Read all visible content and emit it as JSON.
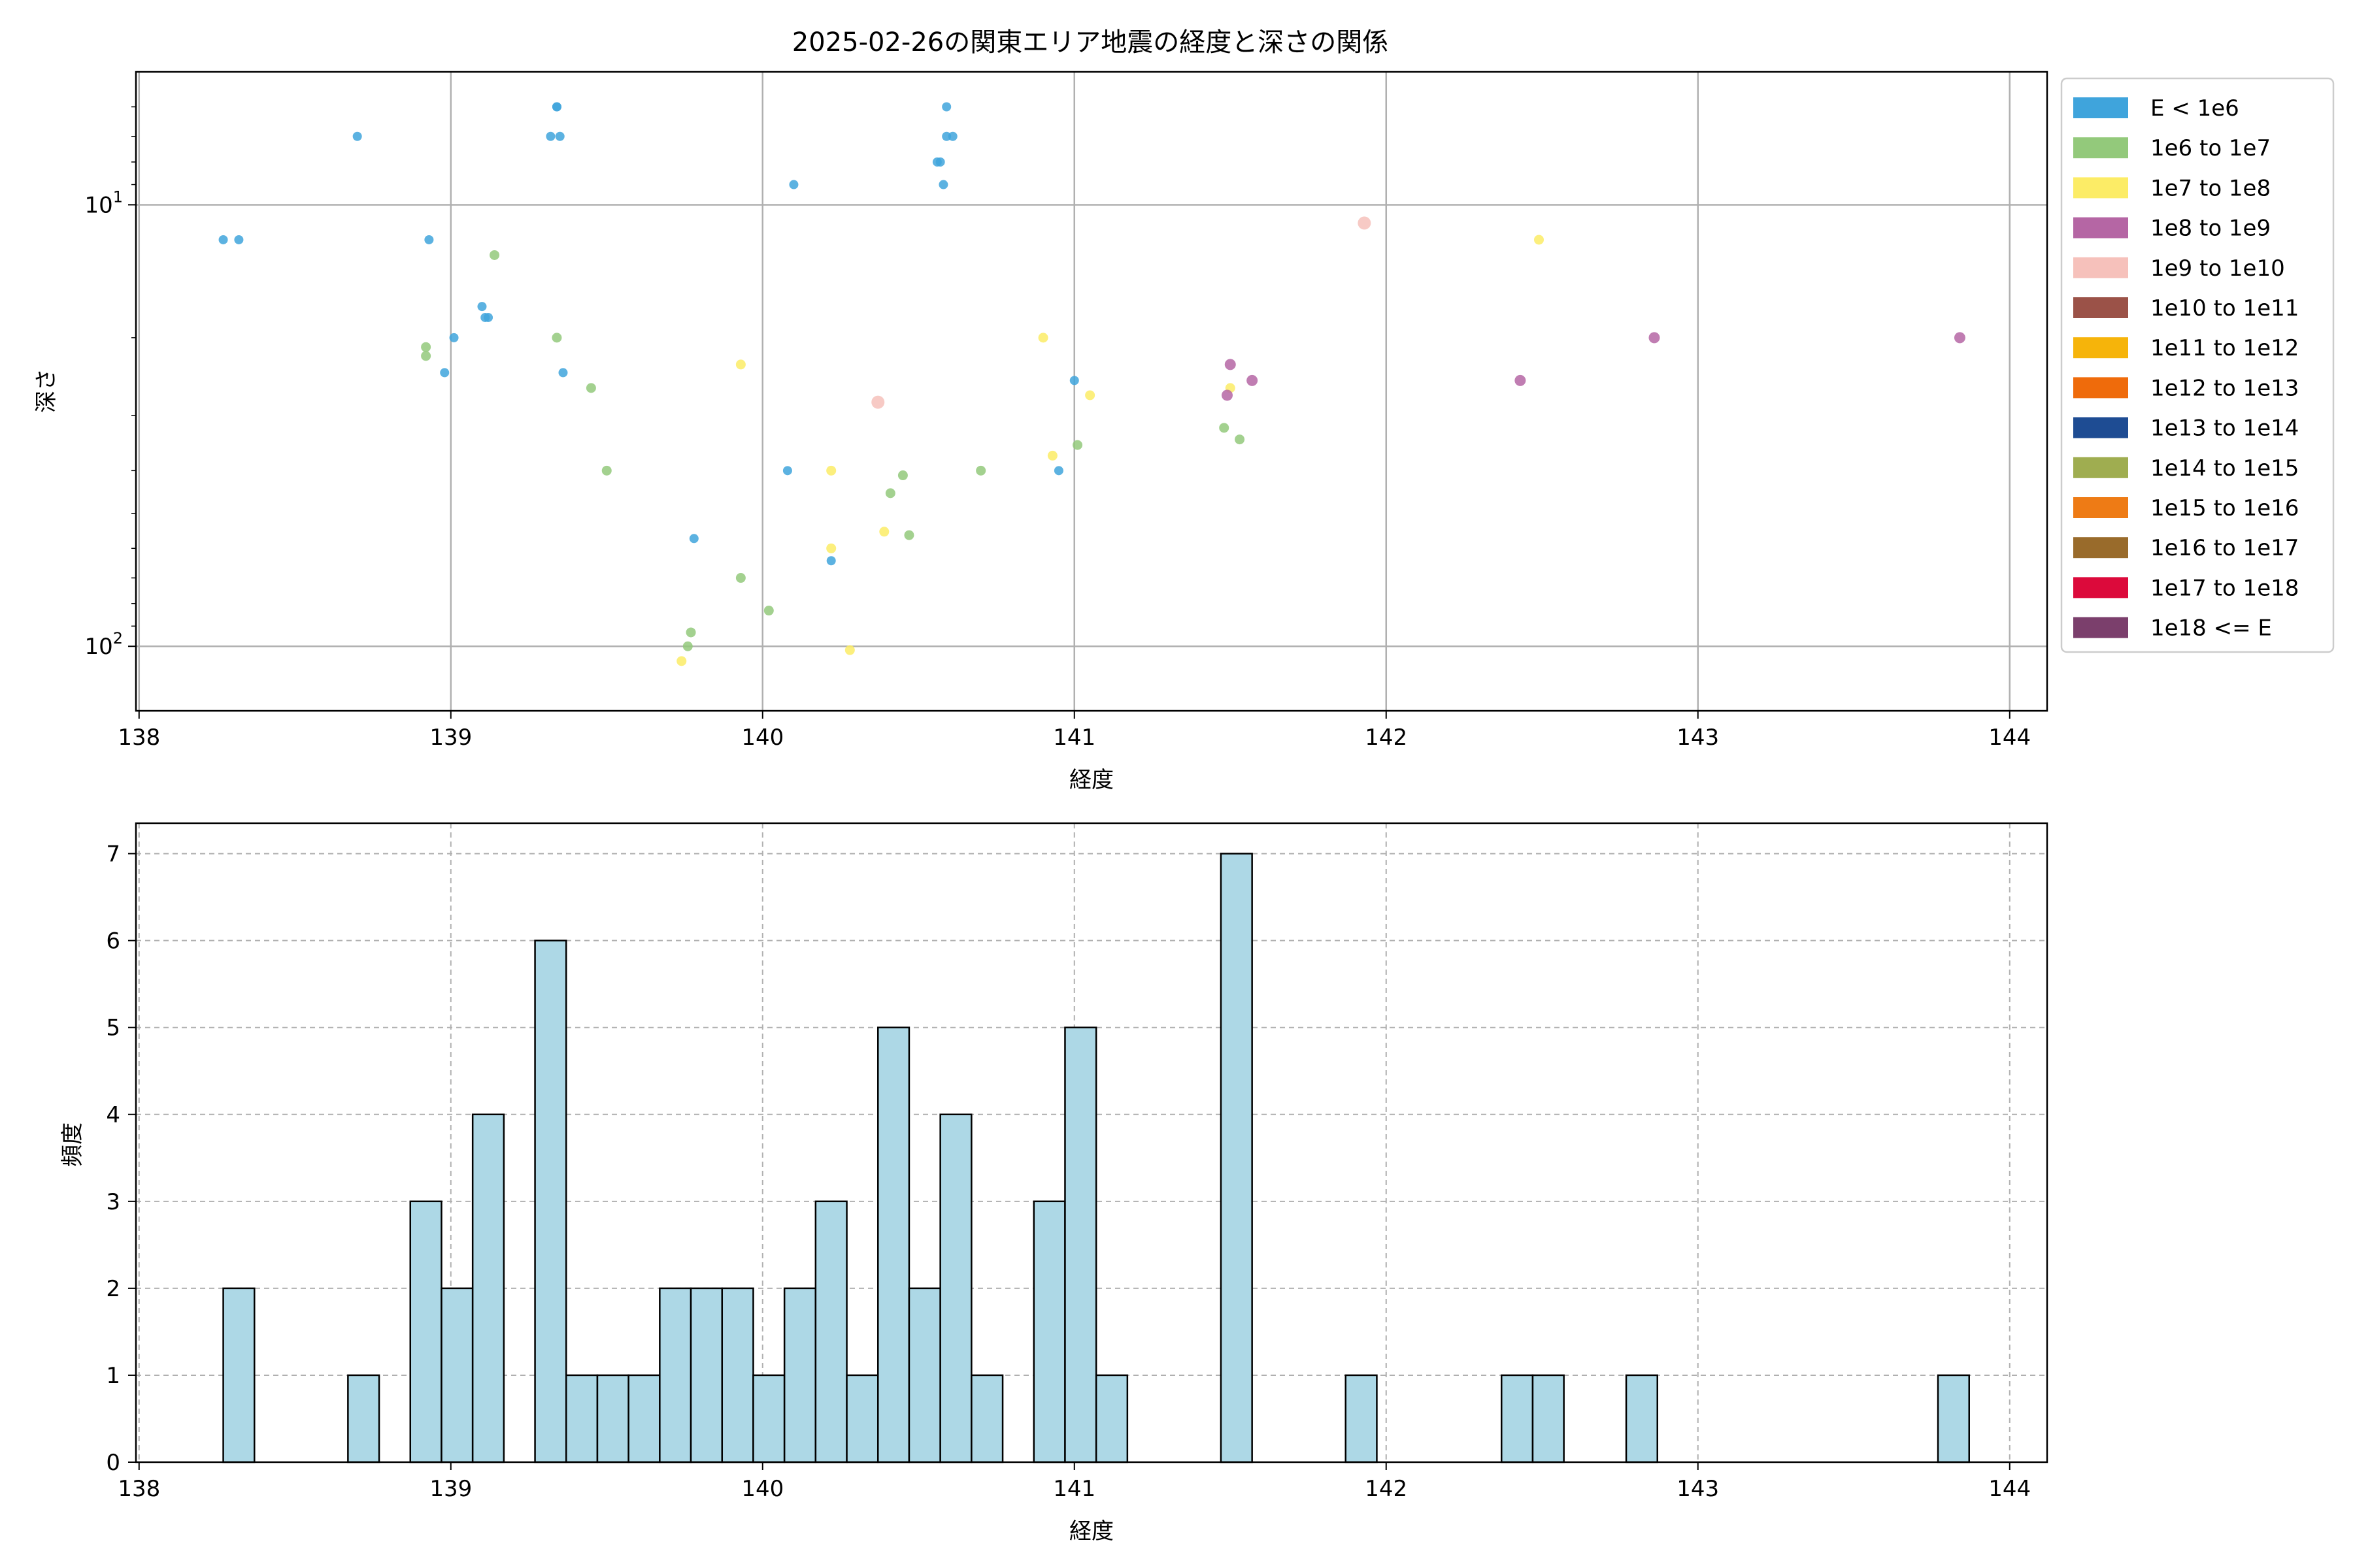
{
  "chart_data": [
    {
      "type": "scatter",
      "title": "2025-02-26の関東エリア地震の経度と深さの関係",
      "xlabel": "経度",
      "ylabel": "深さ",
      "xlim": [
        137.99,
        144.12
      ],
      "ylim": [
        140,
        5
      ],
      "yscale": "log",
      "y_inverted": true,
      "grid": true,
      "xticks": [
        138,
        139,
        140,
        141,
        142,
        143,
        144
      ],
      "yticks": [
        {
          "value": 10,
          "base": "10",
          "exp": "1"
        },
        {
          "value": 100,
          "base": "10",
          "exp": "2"
        }
      ],
      "legend": {
        "placement": "outside-right",
        "entries": [
          {
            "label": "E < 1e6",
            "color": "#3fa4dc"
          },
          {
            "label": "1e6 to 1e7",
            "color": "#93c97b"
          },
          {
            "label": "1e7 to 1e8",
            "color": "#fcec66"
          },
          {
            "label": "1e8 to 1e9",
            "color": "#b566a4"
          },
          {
            "label": "1e9 to 1e10",
            "color": "#f6c1bb"
          },
          {
            "label": "1e10 to 1e11",
            "color": "#9b5248"
          },
          {
            "label": "1e11 to 1e12",
            "color": "#f6b40a"
          },
          {
            "label": "1e12 to 1e13",
            "color": "#ef6b0b"
          },
          {
            "label": "1e13 to 1e14",
            "color": "#1e4c93"
          },
          {
            "label": "1e14 to 1e15",
            "color": "#9fad50"
          },
          {
            "label": "1e15 to 1e16",
            "color": "#ee7b15"
          },
          {
            "label": "1e16 to 1e17",
            "color": "#996b2b"
          },
          {
            "label": "1e17 to 1e18",
            "color": "#dc0a3b"
          },
          {
            "label": "1e18 <= E",
            "color": "#7b3f6c"
          }
        ]
      },
      "series": [
        {
          "legend_index": 0,
          "points": [
            [
              138.27,
              12
            ],
            [
              138.32,
              12
            ],
            [
              138.7,
              7
            ],
            [
              138.93,
              12
            ],
            [
              138.98,
              24
            ],
            [
              139.01,
              20
            ],
            [
              139.1,
              17
            ],
            [
              139.11,
              18
            ],
            [
              139.12,
              18
            ],
            [
              139.32,
              7
            ],
            [
              139.34,
              6
            ],
            [
              139.34,
              6
            ],
            [
              139.35,
              7
            ],
            [
              139.36,
              24
            ],
            [
              139.78,
              57
            ],
            [
              140.08,
              40
            ],
            [
              140.1,
              9
            ],
            [
              140.22,
              64
            ],
            [
              140.56,
              8
            ],
            [
              140.57,
              8
            ],
            [
              140.58,
              9
            ],
            [
              140.59,
              6
            ],
            [
              140.59,
              7
            ],
            [
              140.61,
              7
            ],
            [
              140.95,
              40
            ],
            [
              141.0,
              25
            ]
          ]
        },
        {
          "legend_index": 1,
          "points": [
            [
              138.92,
              21
            ],
            [
              138.92,
              22
            ],
            [
              139.14,
              13
            ],
            [
              139.34,
              20
            ],
            [
              139.45,
              26
            ],
            [
              139.5,
              40
            ],
            [
              139.76,
              100
            ],
            [
              139.77,
              93
            ],
            [
              139.93,
              70
            ],
            [
              140.02,
              83
            ],
            [
              140.41,
              45
            ],
            [
              140.45,
              41
            ],
            [
              140.47,
              56
            ],
            [
              140.7,
              40
            ],
            [
              141.01,
              35
            ],
            [
              141.48,
              32
            ],
            [
              141.53,
              34
            ]
          ]
        },
        {
          "legend_index": 2,
          "points": [
            [
              139.74,
              108
            ],
            [
              139.93,
              23
            ],
            [
              140.22,
              40
            ],
            [
              140.22,
              60
            ],
            [
              140.28,
              102
            ],
            [
              140.39,
              55
            ],
            [
              140.9,
              20
            ],
            [
              140.93,
              37
            ],
            [
              141.05,
              27
            ],
            [
              141.5,
              26
            ],
            [
              142.49,
              12
            ]
          ]
        },
        {
          "legend_index": 3,
          "points": [
            [
              141.49,
              27
            ],
            [
              141.5,
              23
            ],
            [
              141.57,
              25
            ],
            [
              142.43,
              25
            ],
            [
              142.86,
              20
            ],
            [
              143.84,
              20
            ]
          ]
        },
        {
          "legend_index": 4,
          "points": [
            [
              140.37,
              28
            ],
            [
              141.93,
              11
            ]
          ]
        }
      ]
    },
    {
      "type": "bar",
      "xlabel": "経度",
      "ylabel": "頻度",
      "xlim": [
        137.99,
        144.12
      ],
      "ylim": [
        0,
        7.35
      ],
      "grid": true,
      "xticks": [
        138,
        139,
        140,
        141,
        142,
        143,
        144
      ],
      "yticks": [
        0,
        1,
        2,
        3,
        4,
        5,
        6,
        7
      ],
      "bar_color": "#add8e6",
      "bin_width": 0.1,
      "bins": [
        {
          "x0": 138.27,
          "value": 2
        },
        {
          "x0": 138.67,
          "value": 1
        },
        {
          "x0": 138.87,
          "value": 3
        },
        {
          "x0": 138.97,
          "value": 2
        },
        {
          "x0": 139.07,
          "value": 4
        },
        {
          "x0": 139.27,
          "value": 6
        },
        {
          "x0": 139.37,
          "value": 1
        },
        {
          "x0": 139.47,
          "value": 1
        },
        {
          "x0": 139.57,
          "value": 1
        },
        {
          "x0": 139.67,
          "value": 2
        },
        {
          "x0": 139.77,
          "value": 2
        },
        {
          "x0": 139.87,
          "value": 2
        },
        {
          "x0": 139.97,
          "value": 1
        },
        {
          "x0": 140.07,
          "value": 2
        },
        {
          "x0": 140.17,
          "value": 3
        },
        {
          "x0": 140.27,
          "value": 1
        },
        {
          "x0": 140.37,
          "value": 5
        },
        {
          "x0": 140.47,
          "value": 2
        },
        {
          "x0": 140.57,
          "value": 4
        },
        {
          "x0": 140.67,
          "value": 1
        },
        {
          "x0": 140.87,
          "value": 3
        },
        {
          "x0": 140.97,
          "value": 5
        },
        {
          "x0": 141.07,
          "value": 1
        },
        {
          "x0": 141.47,
          "value": 7
        },
        {
          "x0": 141.87,
          "value": 1
        },
        {
          "x0": 142.37,
          "value": 1
        },
        {
          "x0": 142.47,
          "value": 1
        },
        {
          "x0": 142.77,
          "value": 1
        },
        {
          "x0": 143.77,
          "value": 1
        }
      ]
    }
  ]
}
